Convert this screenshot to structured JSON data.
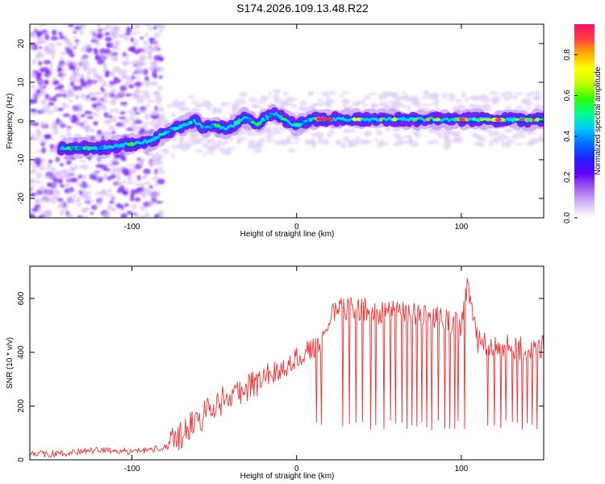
{
  "chart_data": [
    {
      "type": "heatmap",
      "title": "S174.2026.109.13.48.R22",
      "xlabel": "Height of straight line (km)",
      "ylabel": "Frequency (Hz)",
      "xlim": [
        -162,
        150
      ],
      "ylim": [
        -25,
        25
      ],
      "xticks": [
        -100,
        0,
        100
      ],
      "xtick_labels": [
        "-100",
        "0",
        "100"
      ],
      "yticks": [
        20,
        10,
        0,
        -10,
        -20
      ],
      "ytick_labels": [
        "20",
        "10",
        "0",
        "-10",
        "-20"
      ],
      "ridge": {
        "x": [
          -143,
          -120,
          -100,
          -88,
          -80,
          -74,
          -68,
          -62,
          -56,
          -50,
          -44,
          -38,
          -32,
          -28,
          -24,
          -18,
          -14,
          -10,
          -6,
          -2,
          2,
          6,
          10,
          150
        ],
        "y": [
          -7,
          -7,
          -6,
          -5,
          -3,
          -2,
          -1,
          0,
          -2,
          -1,
          -2,
          -1,
          1,
          0,
          -1,
          1,
          2,
          1,
          0,
          -1,
          -1,
          0,
          0.5,
          0.3
        ]
      },
      "colorbar": {
        "label": "Normalized spectral amplitude",
        "range": [
          0,
          0.95
        ],
        "ticks": [
          0.0,
          0.2,
          0.4,
          0.6,
          0.8
        ],
        "tick_labels": [
          "0.0",
          "0.2",
          "0.4",
          "0.6",
          "0.8"
        ],
        "colormap": [
          "#ffffff",
          "#d5b8f5",
          "#a060f0",
          "#6000ff",
          "#2020ff",
          "#0070ff",
          "#00c8ff",
          "#00ff90",
          "#30ff00",
          "#c0ff00",
          "#ffff00",
          "#ffb000",
          "#ff4040",
          "#ff1060"
        ]
      }
    },
    {
      "type": "line",
      "xlabel": "Height of straight line (km)",
      "ylabel": "SNR (10 * v/v)",
      "xlim": [
        -162,
        150
      ],
      "ylim": [
        0,
        720
      ],
      "xticks": [
        -100,
        0,
        100
      ],
      "xtick_labels": [
        "-100",
        "0",
        "100"
      ],
      "yticks": [
        0,
        200,
        400,
        600
      ],
      "ytick_labels": [
        "0",
        "200",
        "400",
        "600"
      ],
      "series": [
        {
          "name": "SNR",
          "color": "#ee3333",
          "x": [
            -162,
            -150,
            -140,
            -130,
            -120,
            -110,
            -100,
            -90,
            -80,
            -72,
            -66,
            -60,
            -54,
            -48,
            -42,
            -36,
            -30,
            -24,
            -18,
            -12,
            -6,
            0,
            6,
            12,
            18,
            24,
            30,
            40,
            50,
            60,
            70,
            80,
            90,
            100,
            104,
            110,
            120,
            130,
            140,
            150
          ],
          "y": [
            20,
            22,
            25,
            30,
            35,
            33,
            32,
            38,
            45,
            80,
            130,
            140,
            180,
            210,
            230,
            250,
            270,
            290,
            320,
            330,
            350,
            380,
            400,
            420,
            450,
            580,
            560,
            560,
            540,
            560,
            540,
            530,
            520,
            500,
            650,
            440,
            430,
            420,
            410,
            420
          ]
        }
      ],
      "dropouts": [
        12,
        15,
        28,
        32,
        36,
        40,
        45,
        48,
        53,
        57,
        60,
        64,
        67,
        70,
        73,
        76,
        79,
        82,
        86,
        90,
        93,
        96,
        98,
        102,
        116,
        120,
        124,
        127,
        131,
        134,
        137,
        140,
        143,
        146
      ]
    }
  ]
}
